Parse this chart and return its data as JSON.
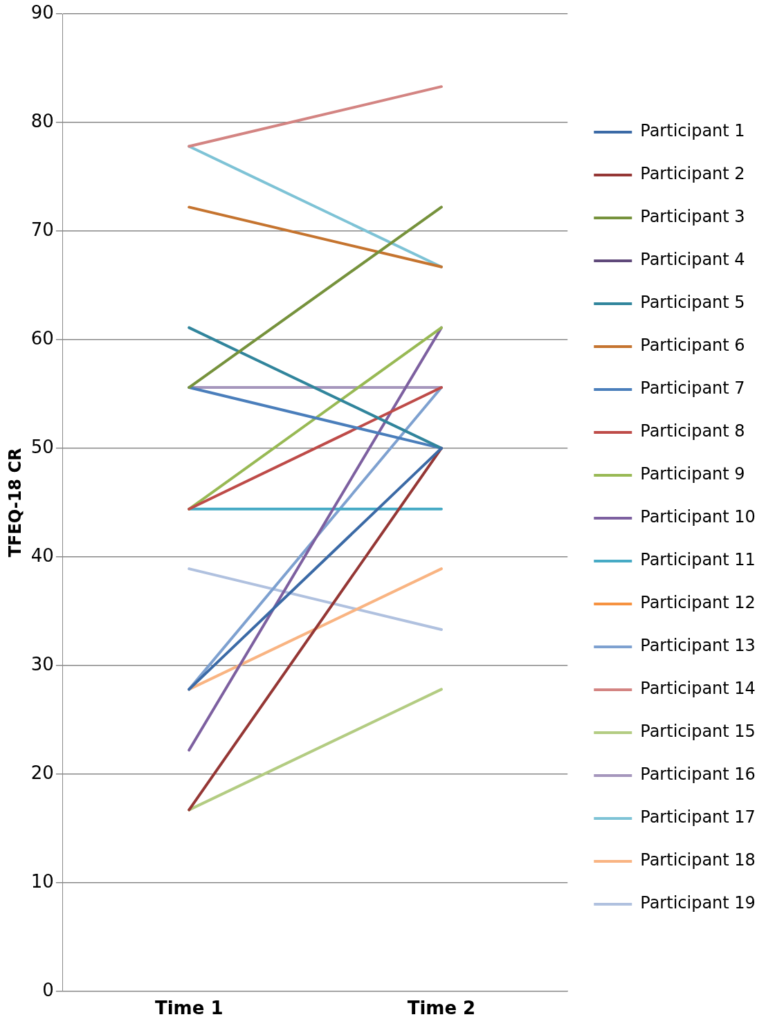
{
  "chart_data": {
    "type": "line",
    "ylabel": "TFEQ-18 CR",
    "categories": [
      "Time 1",
      "Time 2"
    ],
    "ylim": [
      0,
      90
    ],
    "yticks": [
      0,
      10,
      20,
      30,
      40,
      50,
      60,
      70,
      80,
      90
    ],
    "grid": "y",
    "legend": "right",
    "marker": "none",
    "line_style": "solid",
    "series": [
      {
        "name": "Participant 1",
        "color": "#3b6aa6",
        "values": [
          27.8,
          50
        ]
      },
      {
        "name": "Participant 2",
        "color": "#953735",
        "values": [
          16.7,
          50
        ]
      },
      {
        "name": "Participant 3",
        "color": "#76923c",
        "values": [
          55.6,
          72.2
        ]
      },
      {
        "name": "Participant 4",
        "color": "#5f497a",
        "values": [
          null,
          null
        ]
      },
      {
        "name": "Participant 5",
        "color": "#31859c",
        "values": [
          61.1,
          50
        ]
      },
      {
        "name": "Participant 6",
        "color": "#c5742f",
        "values": [
          72.2,
          66.7
        ]
      },
      {
        "name": "Participant 7",
        "color": "#4a7ebb",
        "values": [
          55.6,
          50
        ]
      },
      {
        "name": "Participant 8",
        "color": "#be4b48",
        "values": [
          44.4,
          55.6
        ]
      },
      {
        "name": "Participant 9",
        "color": "#98b954",
        "values": [
          44.4,
          61.1
        ]
      },
      {
        "name": "Participant 10",
        "color": "#7d60a0",
        "values": [
          22.2,
          61.1
        ]
      },
      {
        "name": "Participant 11",
        "color": "#46aac5",
        "values": [
          44.4,
          44.4
        ]
      },
      {
        "name": "Participant 12",
        "color": "#f69240",
        "values": [
          null,
          null
        ]
      },
      {
        "name": "Participant 13",
        "color": "#7ea1d0",
        "values": [
          27.8,
          55.6
        ]
      },
      {
        "name": "Participant 14",
        "color": "#d38482",
        "values": [
          77.8,
          83.3
        ]
      },
      {
        "name": "Participant 15",
        "color": "#b3cc82",
        "values": [
          16.7,
          27.8
        ]
      },
      {
        "name": "Participant 16",
        "color": "#a596bc",
        "values": [
          55.6,
          55.6
        ]
      },
      {
        "name": "Participant 17",
        "color": "#7ec3d6",
        "values": [
          77.8,
          66.7
        ]
      },
      {
        "name": "Participant 18",
        "color": "#f9b482",
        "values": [
          27.8,
          38.9
        ]
      },
      {
        "name": "Participant 19",
        "color": "#b0c1df",
        "values": [
          38.9,
          33.3
        ]
      }
    ]
  }
}
